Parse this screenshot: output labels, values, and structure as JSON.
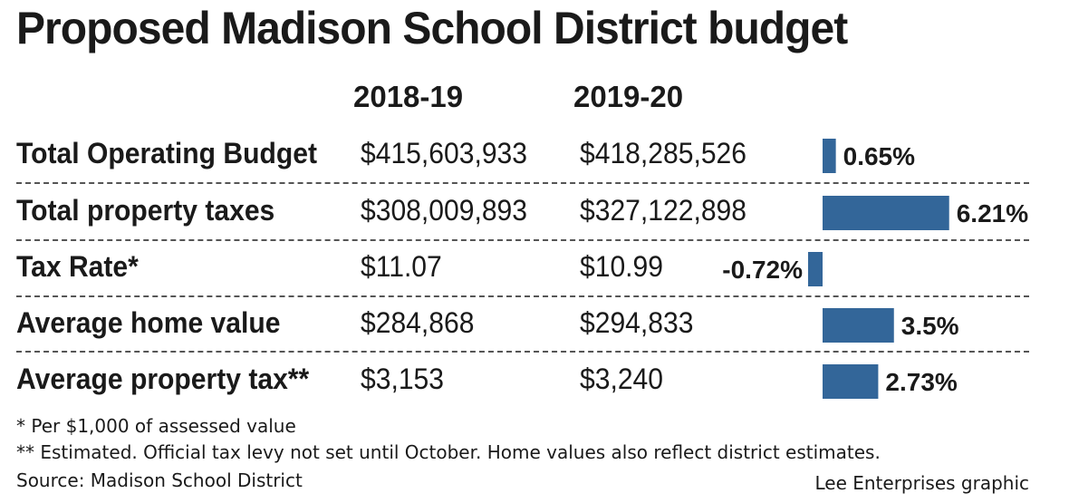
{
  "chart_data": {
    "type": "table",
    "title": "Proposed Madison School District budget",
    "columns": [
      "2018-19",
      "2019-20"
    ],
    "rows": [
      {
        "label": "Total Operating Budget",
        "v1": "$415,603,933",
        "v2": "$418,285,526",
        "change": 0.65,
        "change_label": "0.65%"
      },
      {
        "label": "Total property taxes",
        "v1": "$308,009,893",
        "v2": "$327,122,898",
        "change": 6.21,
        "change_label": "6.21%"
      },
      {
        "label": "Tax Rate*",
        "v1": "$11.07",
        "v2": "$10.99",
        "change": -0.72,
        "change_label": "-0.72%"
      },
      {
        "label": "Average home value",
        "v1": "$284,868",
        "v2": "$294,833",
        "change": 3.5,
        "change_label": "3.5%"
      },
      {
        "label": "Average property tax**",
        "v1": "$3,153",
        "v2": "$3,240",
        "change": 2.73,
        "change_label": "2.73%"
      }
    ],
    "bar_color": "#336699"
  },
  "footnotes": {
    "note1": "* Per $1,000 of assessed value",
    "note2": "** Estimated. Official tax levy not set until October. Home values also reflect district estimates.",
    "source": "Source: Madison School District",
    "credit": "Lee Enterprises graphic"
  }
}
